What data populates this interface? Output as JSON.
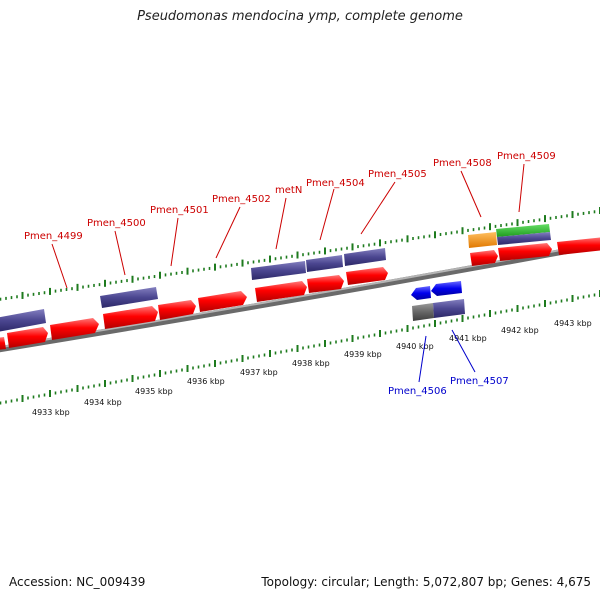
{
  "title": "Pseudomonas mendocina ymp, complete genome",
  "footer": {
    "accession": "Accession: NC_009439",
    "summary": "Topology: circular; Length: 5,072,807 bp; Genes: 4,675"
  },
  "colors": {
    "forward_cds": "#ff0000",
    "forward_gene": "#4b4690",
    "reverse_cds": "#0000ff",
    "reverse_gene": "#4b4690",
    "backbone": "#888888",
    "tick": "#1e7b1e",
    "label_forward": "#cc0000",
    "label_reverse": "#0000cc",
    "orange": "#ff9900",
    "green": "#33bb33"
  },
  "kbp_ticks": [
    "4933 kbp",
    "4934 kbp",
    "4935 kbp",
    "4936 kbp",
    "4937 kbp",
    "4938 kbp",
    "4939 kbp",
    "4940 kbp",
    "4941 kbp",
    "4942 kbp",
    "4943 kbp"
  ],
  "forward_labels": [
    "Pmen_4499",
    "Pmen_4500",
    "Pmen_4501",
    "Pmen_4502",
    "metN",
    "Pmen_4504",
    "Pmen_4505",
    "Pmen_4508",
    "Pmen_4509"
  ],
  "reverse_labels": [
    "Pmen_4506",
    "Pmen_4507"
  ]
}
